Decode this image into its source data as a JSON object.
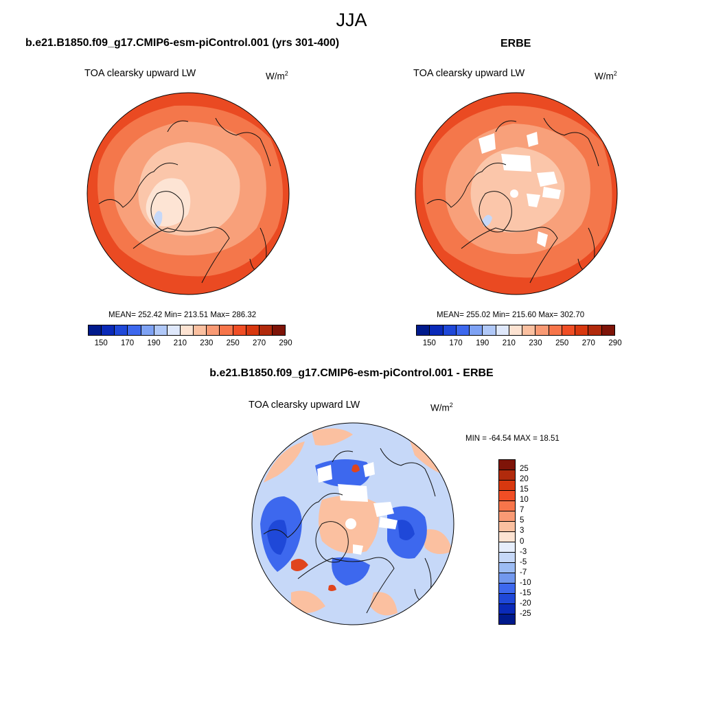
{
  "title": "JJA",
  "panel_model": {
    "case_title": "b.e21.B1850.f09_g17.CMIP6-esm-piControl.001 (yrs 301-400)",
    "variable": "TOA clearsky upward LW",
    "units_base": "W/m",
    "units_exp": "2",
    "stats": "MEAN= 252.42  Min= 213.51  Max= 286.32"
  },
  "panel_obs": {
    "case_title": "ERBE",
    "variable": "TOA clearsky upward LW",
    "units_base": "W/m",
    "units_exp": "2",
    "stats": "MEAN= 255.02  Min= 215.60  Max= 302.70"
  },
  "panel_diff": {
    "case_title": "b.e21.B1850.f09_g17.CMIP6-esm-piControl.001 - ERBE",
    "variable": "TOA clearsky upward LW",
    "units_base": "W/m",
    "units_exp": "2",
    "stats": "MIN = -64.54 MAX =  18.51"
  },
  "colorbar_abs": {
    "labels": [
      "150",
      "170",
      "190",
      "210",
      "230",
      "250",
      "270",
      "290"
    ],
    "colors": [
      "#001a8c",
      "#0a2ab8",
      "#1f48d8",
      "#3d68ee",
      "#7ea2f4",
      "#b0c8f8",
      "#dfe8fb",
      "#fde3d2",
      "#fbc0a0",
      "#f99a74",
      "#f7754a",
      "#f04e25",
      "#d8380f",
      "#b12a0c",
      "#7e1408"
    ]
  },
  "colorbar_diff": {
    "labels": [
      "25",
      "20",
      "15",
      "10",
      "7",
      "5",
      "3",
      "0",
      "-3",
      "-5",
      "-7",
      "-10",
      "-15",
      "-20",
      "-25"
    ],
    "colors": [
      "#7e1408",
      "#b12a0c",
      "#d8380f",
      "#f04e25",
      "#f7754a",
      "#f99a74",
      "#fbc0a0",
      "#fde3d2",
      "#e6eefc",
      "#c6d8f8",
      "#9cbcf4",
      "#7298ee",
      "#3d68ee",
      "#1f48d8",
      "#0a2ab8",
      "#001a8c"
    ]
  },
  "map_colors": {
    "ocean_warm": "#ea4a22",
    "mid": "#f4774b",
    "cool": "#f8a07a",
    "arctic": "#fbc6aa",
    "pale": "#fde4d4",
    "greenland_blue": "#c6d8f8",
    "missing": "#ffffff",
    "coast": "#111111",
    "diff_base": "#c6d8f8",
    "diff_pos": "#fbc0a0",
    "diff_neg": "#3d68ee",
    "diff_strong_neg": "#1f48d8",
    "diff_strong_pos": "#e0451d"
  }
}
